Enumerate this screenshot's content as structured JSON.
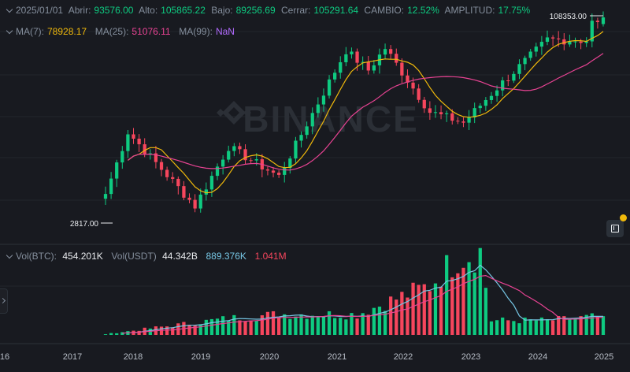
{
  "header": {
    "date": "2025/01/01",
    "open_label": "Abrir:",
    "open": "93576.00",
    "high_label": "Alto:",
    "high": "105865.22",
    "low_label": "Bajo:",
    "low": "89256.69",
    "close_label": "Cerrar:",
    "close": "105291.64",
    "change_label": "CAMBIO:",
    "change": "12.52%",
    "amplitude_label": "AMPLITUD:",
    "amplitude": "17.75%"
  },
  "ma": {
    "ma7_label": "MA(7):",
    "ma7": "78928.17",
    "ma25_label": "MA(25):",
    "ma25": "51076.11",
    "ma99_label": "MA(99):",
    "ma99": "NaN"
  },
  "volume": {
    "btc_label": "Vol(BTC):",
    "btc": "454.201K",
    "usdt_label": "Vol(USDT)",
    "usdt": "44.342B",
    "ma1": "889.376K",
    "ma2": "1.041M"
  },
  "colors": {
    "up": "#0ecb81",
    "down": "#f6465d",
    "ma7": "#f0b90b",
    "ma25": "#e84393",
    "vol_ma1": "#76c6e4",
    "vol_ma2": "#e84393"
  },
  "watermark": "BINANCE",
  "icons": [
    "chevron-down-icon",
    "chart-settings-icon",
    "notification-dot-icon",
    "collapse-arrow-icon"
  ],
  "chart_data": {
    "type": "candlestick",
    "pair": "BTC/USDT",
    "interval": "1M",
    "price_scale": "log",
    "x_tick_labels": [
      "16",
      "2017",
      "2018",
      "2019",
      "2020",
      "2021",
      "2022",
      "2023",
      "2024",
      "2025"
    ],
    "max_marker": "108353.00",
    "min_marker": "2817.00",
    "price_key": {
      "2017-08": 4700,
      "2017-12": 14000,
      "2018-12": 3800,
      "2019-06": 10800,
      "2020-03": 6400,
      "2021-03": 58900,
      "2021-07": 41500,
      "2021-10": 61300,
      "2022-06": 19900,
      "2022-12": 16500,
      "2023-06": 30400,
      "2024-03": 71200,
      "2024-10": 70200,
      "2024-11": 96400,
      "2024-12": 93400,
      "2025-01": 105291.64
    },
    "volume_key": {
      "2017-08": 20000,
      "2019-06": 400000,
      "2020-03": 500000,
      "2021-05": 500000,
      "2022-06": 1200000,
      "2022-11": 1900000,
      "2023-01": 1950000,
      "2023-03": 2000000,
      "2023-05": 350000,
      "2024-03": 350000,
      "2025-01": 454201
    }
  }
}
